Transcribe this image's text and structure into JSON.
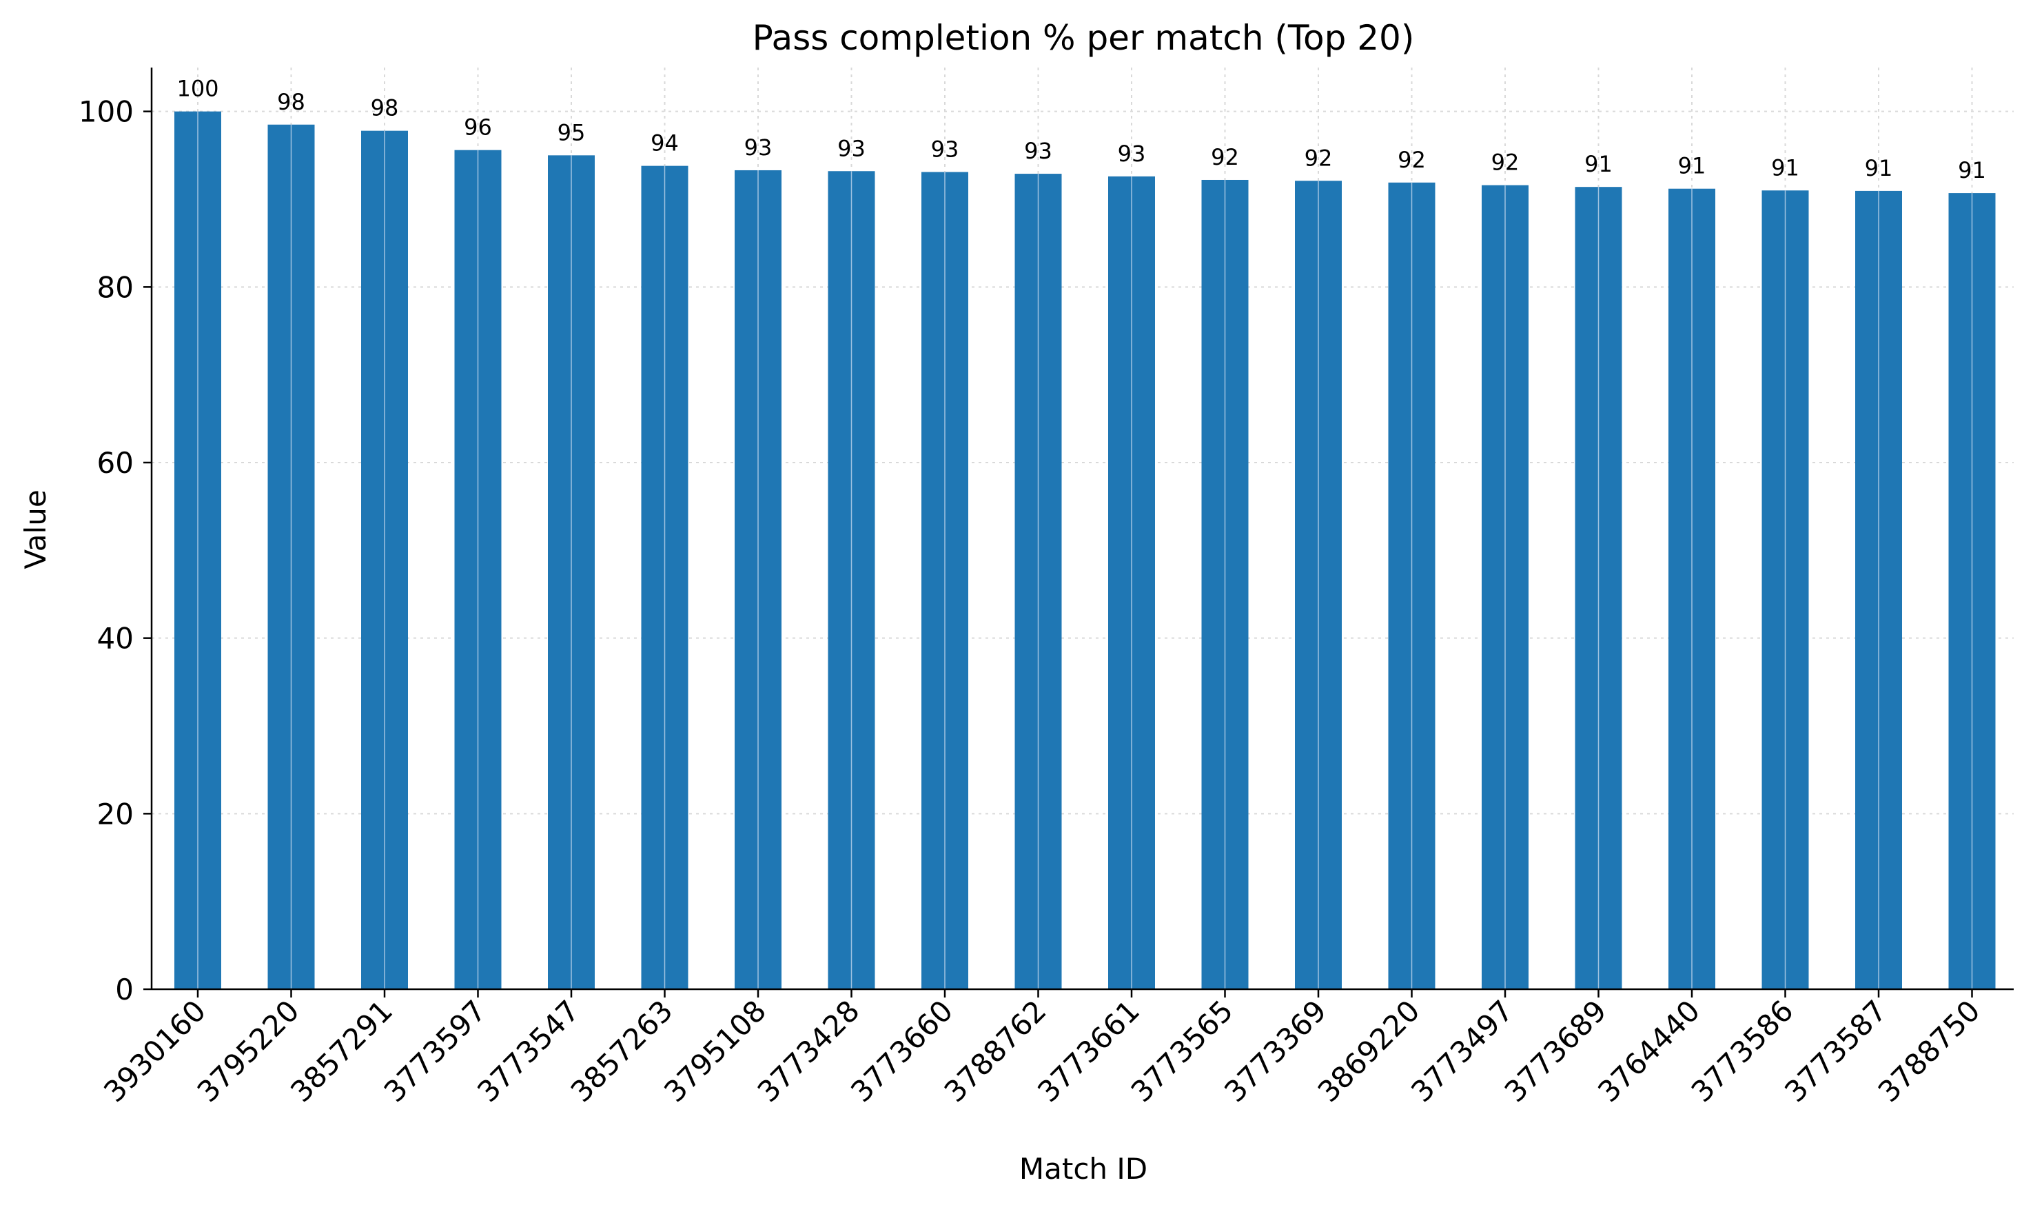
{
  "chart_data": {
    "type": "bar",
    "title": "Pass completion % per match (Top 20)",
    "xlabel": "Match ID",
    "ylabel": "Value",
    "ylim": [
      0,
      105
    ],
    "yticks": [
      0,
      20,
      40,
      60,
      80,
      100
    ],
    "grid": true,
    "categories": [
      "3930160",
      "3795220",
      "3857291",
      "3773597",
      "3773547",
      "3857263",
      "3795108",
      "3773428",
      "3773660",
      "3788762",
      "3773661",
      "3773565",
      "3773369",
      "3869220",
      "3773497",
      "3773689",
      "3764440",
      "3773586",
      "3773587",
      "3788750"
    ],
    "values": [
      100,
      98.5,
      97.8,
      95.6,
      95.0,
      93.8,
      93.3,
      93.2,
      93.1,
      92.9,
      92.6,
      92.2,
      92.1,
      91.9,
      91.6,
      91.4,
      91.2,
      91.0,
      90.95,
      90.7
    ],
    "data_labels": [
      "100",
      "98",
      "98",
      "96",
      "95",
      "94",
      "93",
      "93",
      "93",
      "93",
      "93",
      "92",
      "92",
      "92",
      "92",
      "91",
      "91",
      "91",
      "91",
      "91"
    ],
    "colors": {
      "bar": "#1f77b4"
    }
  }
}
